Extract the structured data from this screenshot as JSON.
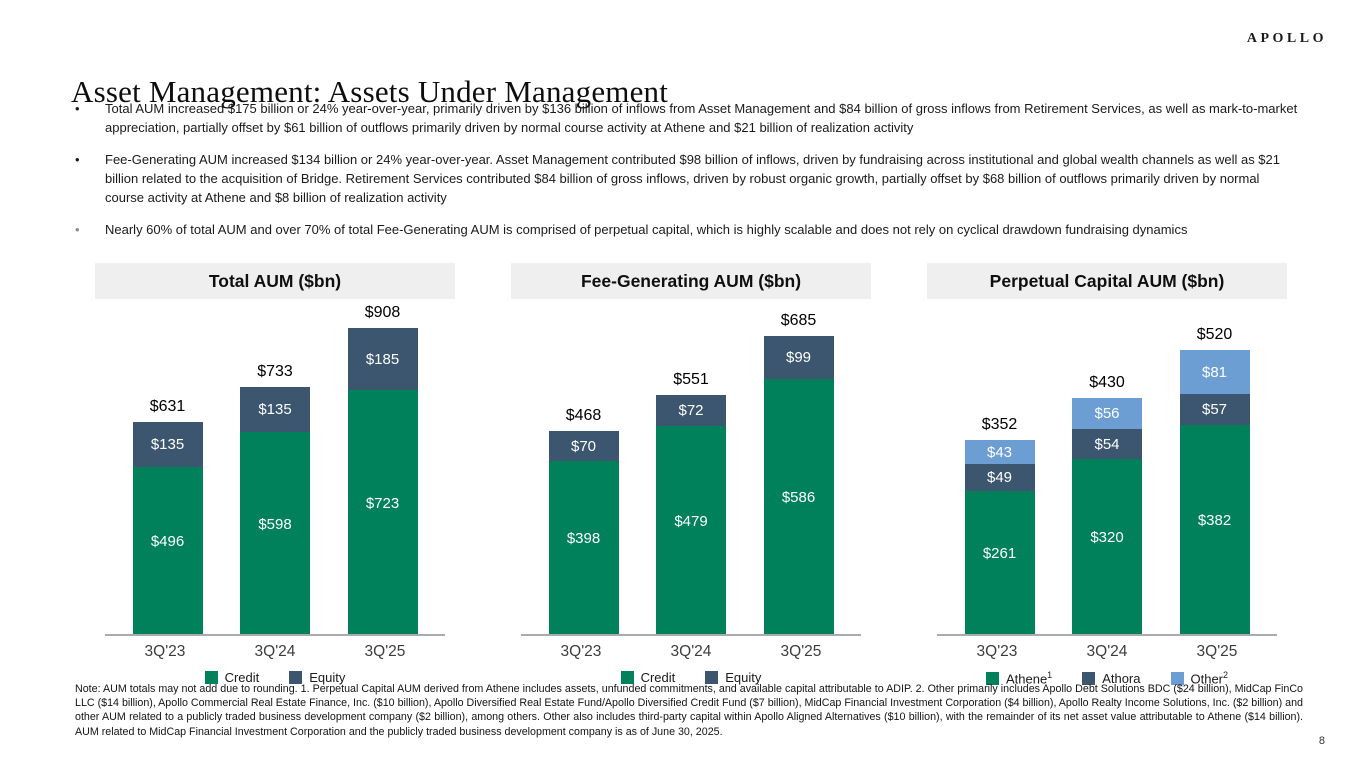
{
  "logo": "APOLLO",
  "page_title": "Asset Management: Assets Under Management",
  "bullet_marker": "•",
  "bullets": [
    {
      "text": "Total AUM increased $175 billion or 24% year-over-year, primarily driven by $136 billion of inflows from Asset Management and $84 billion of gross inflows from Retirement Services, as well as mark-to-market appreciation, partially offset by $61 billion of outflows primarily driven by normal course activity at Athene and $21 billion of realization activity"
    },
    {
      "text": "Fee-Generating AUM increased $134 billion or 24% year-over-year. Asset Management contributed $98 billion of inflows, driven by fundraising across institutional and global wealth channels as well as $21 billion related to the acquisition of Bridge. Retirement Services contributed $84 billion of gross inflows, driven by robust organic growth, partially offset by $68 billion of outflows primarily driven by normal course activity at Athene and $8 billion of realization activity"
    },
    {
      "text": "Nearly 60% of total AUM and over 70% of total Fee-Generating AUM is comprised of perpetual capital, which is highly scalable and does not rely on cyclical drawdown fundraising dynamics"
    }
  ],
  "colors": {
    "credit_green": "#00805B",
    "equity_blue": "#3B566E",
    "other_light_blue": "#6C9DD3",
    "title_band_gray": "#EFEFEF",
    "axis_gray": "#ABABAB"
  },
  "chart_data": [
    {
      "type": "bar",
      "stacked": true,
      "title": "Total AUM ($bn)",
      "categories": [
        "3Q'23",
        "3Q'24",
        "3Q'25"
      ],
      "series": [
        {
          "name": "Credit",
          "color": "credit_green",
          "values": [
            496,
            598,
            723
          ]
        },
        {
          "name": "Equity",
          "color": "equity_blue",
          "values": [
            135,
            135,
            185
          ]
        }
      ],
      "totals": [
        631,
        733,
        908
      ],
      "value_prefix": "$",
      "ylim": [
        0,
        908
      ],
      "legend_position": "bottom",
      "legend": [
        {
          "label": "Credit",
          "sup": "",
          "color": "credit_green"
        },
        {
          "label": "Equity",
          "sup": "",
          "color": "equity_blue"
        }
      ]
    },
    {
      "type": "bar",
      "stacked": true,
      "title": "Fee-Generating AUM ($bn)",
      "categories": [
        "3Q'23",
        "3Q'24",
        "3Q'25"
      ],
      "series": [
        {
          "name": "Credit",
          "color": "credit_green",
          "values": [
            398,
            479,
            586
          ]
        },
        {
          "name": "Equity",
          "color": "equity_blue",
          "values": [
            70,
            72,
            99
          ]
        }
      ],
      "totals": [
        468,
        551,
        685
      ],
      "value_prefix": "$",
      "ylim": [
        0,
        685
      ],
      "legend_position": "bottom",
      "legend": [
        {
          "label": "Credit",
          "sup": "",
          "color": "credit_green"
        },
        {
          "label": "Equity",
          "sup": "",
          "color": "equity_blue"
        }
      ]
    },
    {
      "type": "bar",
      "stacked": true,
      "title": "Perpetual Capital AUM ($bn)",
      "categories": [
        "3Q'23",
        "3Q'24",
        "3Q'25"
      ],
      "series": [
        {
          "name": "Athene",
          "color": "credit_green",
          "values": [
            261,
            320,
            382
          ]
        },
        {
          "name": "Athora",
          "color": "equity_blue",
          "values": [
            49,
            54,
            57
          ]
        },
        {
          "name": "Other",
          "color": "other_light_blue",
          "values": [
            43,
            56,
            81
          ]
        }
      ],
      "totals": [
        352,
        430,
        520
      ],
      "value_prefix": "$",
      "ylim": [
        0,
        520
      ],
      "legend_position": "bottom",
      "legend": [
        {
          "label": "Athene",
          "sup": "1",
          "color": "credit_green"
        },
        {
          "label": "Athora",
          "sup": "",
          "color": "equity_blue"
        },
        {
          "label": "Other",
          "sup": "2",
          "color": "other_light_blue"
        }
      ]
    }
  ],
  "footnote": "Note: AUM totals may not add due to rounding. 1. Perpetual Capital AUM derived from Athene includes assets, unfunded commitments, and available capital attributable to ADIP. 2. Other primarily includes Apollo Debt Solutions BDC ($24 billion), MidCap FinCo LLC ($14 billion), Apollo Commercial Real Estate Finance, Inc. ($10 billion), Apollo Diversified Real Estate Fund/Apollo Diversified Credit Fund ($7 billion), MidCap Financial Investment Corporation ($4 billion), Apollo Realty Income Solutions, Inc. ($2 billion) and other AUM related to a publicly traded business development company ($2 billion), among others. Other also includes third-party capital within Apollo Aligned Alternatives ($10 billion), with the remainder of its net asset value attributable to Athene ($14 billion). AUM related to MidCap Financial Investment Corporation and the publicly traded business development company is as of June 30, 2025.",
  "page_number": "8"
}
